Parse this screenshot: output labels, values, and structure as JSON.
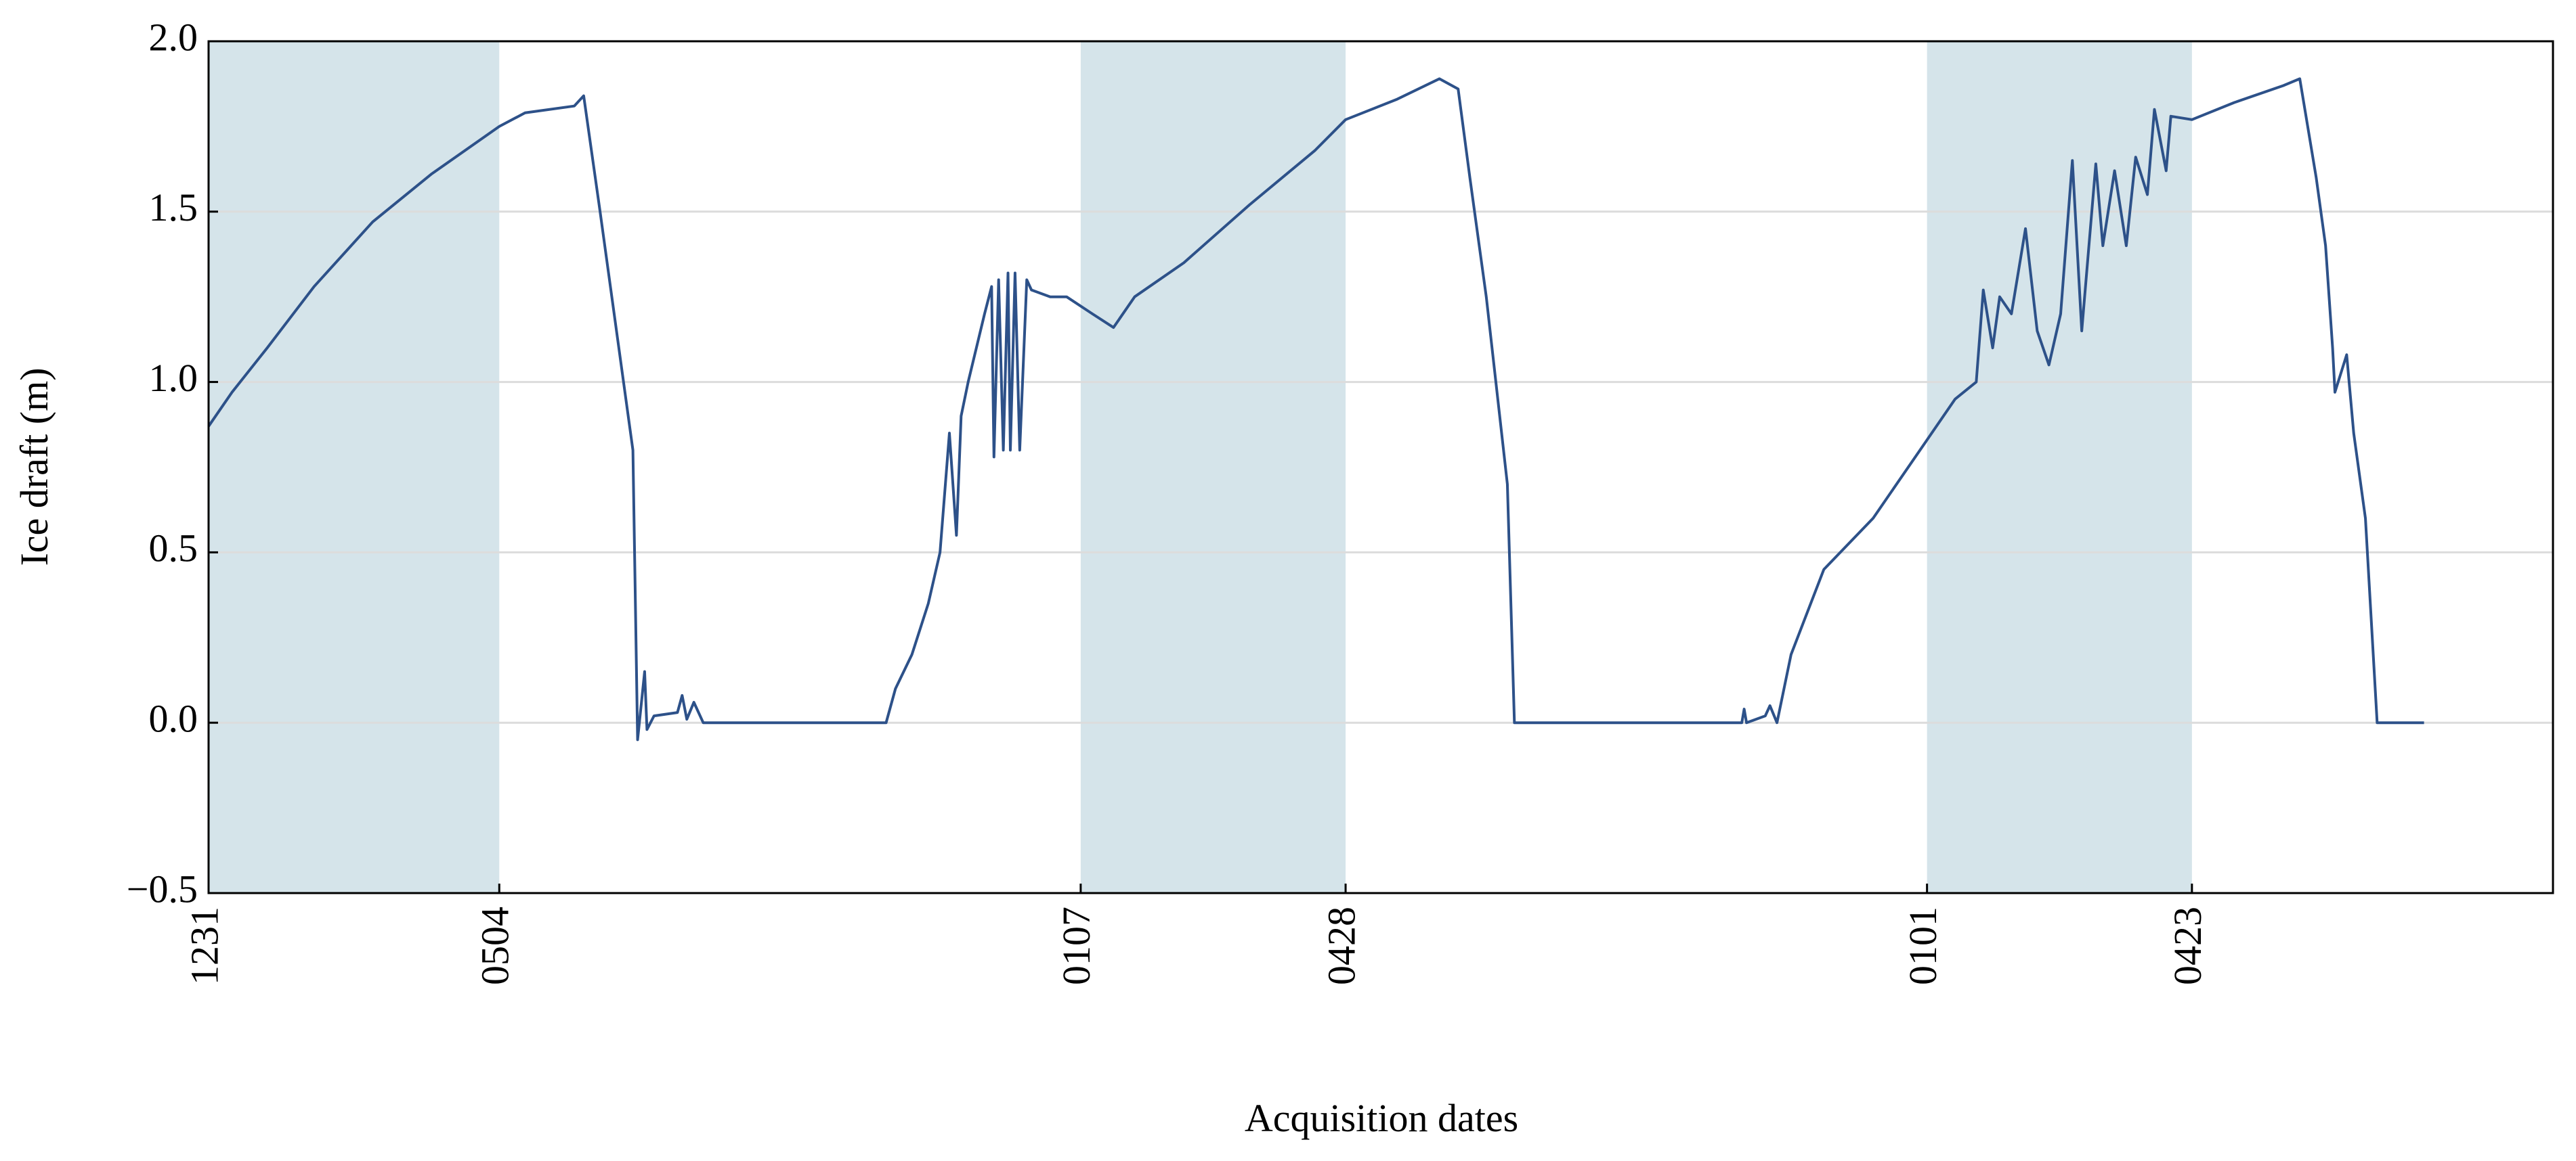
{
  "chart_data": {
    "type": "line",
    "xlabel": "Acquisition dates",
    "ylabel": "Ice draft (m)",
    "xlim": [
      0,
      1000
    ],
    "xticks": [
      {
        "value": 0,
        "label": "1231"
      },
      {
        "value": 124,
        "label": "0504"
      },
      {
        "value": 372,
        "label": "0107"
      },
      {
        "value": 485,
        "label": "0428"
      },
      {
        "value": 733,
        "label": "0101"
      },
      {
        "value": 846,
        "label": "0423"
      }
    ],
    "ylim": [
      -0.5,
      2.0
    ],
    "yticks": [
      {
        "value": -0.5,
        "label": "−0.5"
      },
      {
        "value": 0,
        "label": "0.0"
      },
      {
        "value": 0.5,
        "label": "0.5"
      },
      {
        "value": 1,
        "label": "1.0"
      },
      {
        "value": 1.5,
        "label": "1.5"
      },
      {
        "value": 2,
        "label": "2.0"
      }
    ],
    "grid": true,
    "color": "#2d5189",
    "shade_color": "#d5e4ea",
    "shaded_spans": [
      {
        "start": 0,
        "end": 124
      },
      {
        "start": 372,
        "end": 485
      },
      {
        "start": 733,
        "end": 846
      }
    ],
    "x": [
      0,
      10,
      25,
      45,
      70,
      95,
      124,
      135,
      156,
      160,
      167,
      172,
      177,
      181,
      183,
      186,
      187,
      190,
      200,
      202,
      204,
      207,
      211,
      289,
      293,
      300,
      307,
      312,
      316,
      319,
      321,
      324,
      331,
      334,
      335,
      337,
      339,
      341,
      342,
      344,
      346,
      349,
      351,
      359,
      366,
      377,
      386,
      395,
      416,
      444,
      472,
      485,
      507,
      525,
      533,
      538,
      545,
      554,
      557,
      654,
      655,
      656,
      664,
      666,
      669,
      675,
      689,
      710,
      733,
      745,
      754,
      757,
      761,
      764,
      769,
      775,
      780,
      785,
      790,
      795,
      799,
      805,
      808,
      813,
      818,
      822,
      827,
      830,
      835,
      837,
      846,
      864,
      885,
      892,
      899,
      903,
      906,
      907,
      912,
      915,
      920,
      925,
      945
    ],
    "values": [
      0.87,
      0.97,
      1.1,
      1.28,
      1.47,
      1.61,
      1.75,
      1.79,
      1.81,
      1.84,
      1.5,
      1.25,
      1.0,
      0.8,
      -0.05,
      0.15,
      -0.02,
      0.02,
      0.03,
      0.08,
      0.01,
      0.06,
      0.0,
      0.0,
      0.1,
      0.2,
      0.35,
      0.5,
      0.85,
      0.55,
      0.9,
      1.0,
      1.2,
      1.28,
      0.78,
      1.3,
      0.8,
      1.32,
      0.8,
      1.32,
      0.8,
      1.3,
      1.27,
      1.25,
      1.25,
      1.2,
      1.16,
      1.25,
      1.35,
      1.52,
      1.68,
      1.77,
      1.83,
      1.89,
      1.86,
      1.6,
      1.25,
      0.7,
      0.0,
      0.0,
      0.04,
      0.0,
      0.02,
      0.05,
      0.0,
      0.2,
      0.45,
      0.6,
      0.83,
      0.95,
      1.0,
      1.27,
      1.1,
      1.25,
      1.2,
      1.45,
      1.15,
      1.05,
      1.2,
      1.65,
      1.15,
      1.64,
      1.4,
      1.62,
      1.4,
      1.66,
      1.55,
      1.8,
      1.62,
      1.78,
      1.77,
      1.82,
      1.87,
      1.89,
      1.6,
      1.4,
      1.1,
      0.97,
      1.08,
      0.85,
      0.6,
      0.0,
      0.0
    ]
  }
}
